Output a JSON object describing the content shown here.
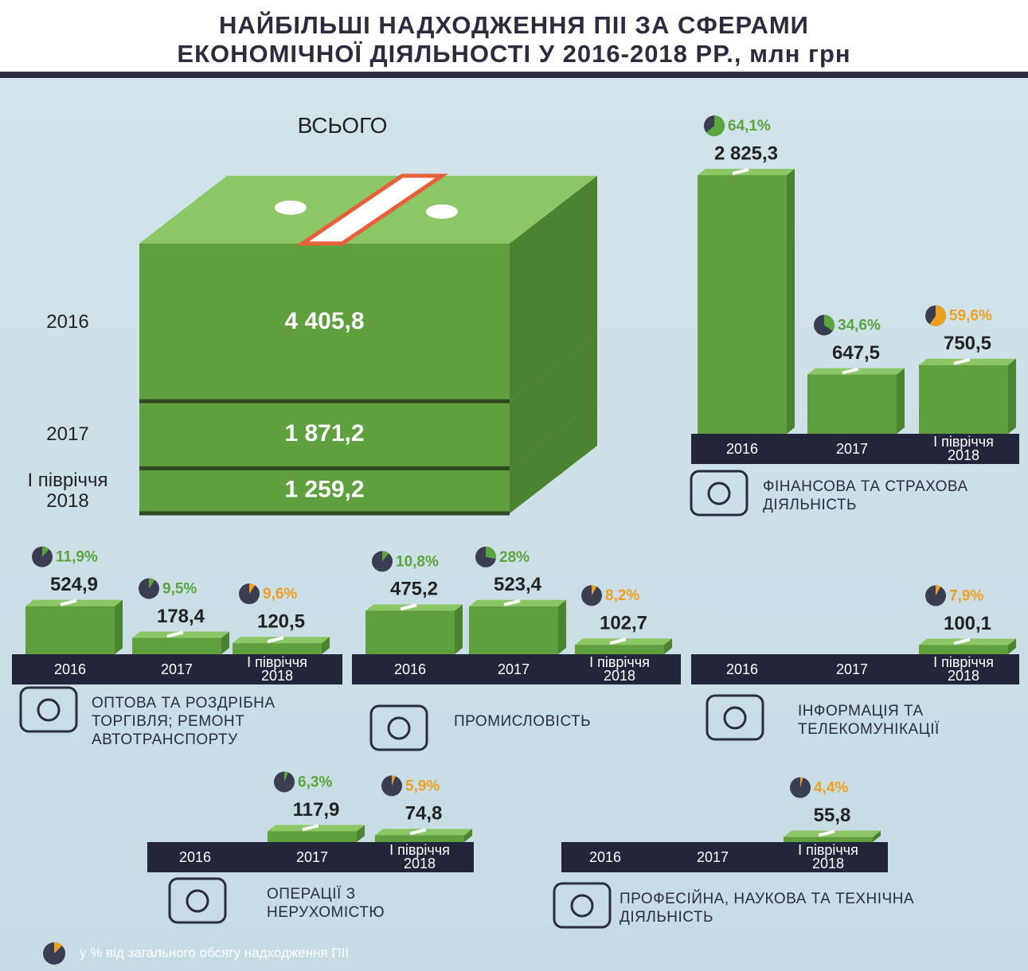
{
  "header": {
    "title_line1": "НАЙБІЛЬШІ НАДХОДЖЕННЯ ПІІ ЗА СФЕРАМИ",
    "title_line2": "ЕКОНОМІЧНОЇ ДІЯЛЬНОСТІ У 2016-2018 РР., млн грн"
  },
  "periods": [
    "2016",
    "2017",
    "І півріччя 2018"
  ],
  "colors": {
    "bar": "#5f9f3e",
    "bar_side": "#4a8430",
    "bar_top": "#8cc766",
    "strip": "#23253a",
    "periods": [
      "#5aa53c",
      "#5aa53c",
      "#f0a020"
    ]
  },
  "total": {
    "label": "ВСЬОГО",
    "values": [
      4405.8,
      1871.2,
      1259.2
    ],
    "value_labels": [
      "4 405,8",
      "1 871,2",
      "1 259,2"
    ]
  },
  "sectors": [
    {
      "name": "ФІНАНСОВА ТА СТРАХОВА ДІЯЛЬНІСТЬ",
      "values": [
        2825.3,
        647.5,
        750.5
      ],
      "value_labels": [
        "2 825,3",
        "647,5",
        "750,5"
      ],
      "shares": [
        64.1,
        34.6,
        59.6
      ],
      "share_labels": [
        "64,1%",
        "34,6%",
        "59,6%"
      ]
    },
    {
      "name": "ОПТОВА ТА РОЗДРІБНА ТОРГІВЛЯ; РЕМОНТ АВТОТРАНСПОРТУ",
      "values": [
        524.9,
        178.4,
        120.5
      ],
      "value_labels": [
        "524,9",
        "178,4",
        "120,5"
      ],
      "shares": [
        11.9,
        9.5,
        9.6
      ],
      "share_labels": [
        "11,9%",
        "9,5%",
        "9,6%"
      ]
    },
    {
      "name": "ПРОМИСЛОВІСТЬ",
      "values": [
        475.2,
        523.4,
        102.7
      ],
      "value_labels": [
        "475,2",
        "523,4",
        "102,7"
      ],
      "shares": [
        10.8,
        28,
        8.2
      ],
      "share_labels": [
        "10,8%",
        "28%",
        "8,2%"
      ]
    },
    {
      "name": "ІНФОРМАЦІЯ ТА ТЕЛЕКОМУНІКАЦІЇ",
      "values": [
        null,
        null,
        100.1
      ],
      "value_labels": [
        null,
        null,
        "100,1"
      ],
      "shares": [
        null,
        null,
        7.9
      ],
      "share_labels": [
        null,
        null,
        "7,9%"
      ]
    },
    {
      "name": "ОПЕРАЦІЇ З НЕРУХОМІСТЮ",
      "values": [
        null,
        117.9,
        74.8
      ],
      "value_labels": [
        null,
        "117,9",
        "74,8"
      ],
      "shares": [
        null,
        6.3,
        5.9
      ],
      "share_labels": [
        null,
        "6,3%",
        "5,9%"
      ]
    },
    {
      "name": "ПРОФЕСІЙНА, НАУКОВА ТА ТЕХНІЧНА ДІЯЛЬНІСТЬ",
      "values": [
        null,
        null,
        55.8
      ],
      "value_labels": [
        null,
        null,
        "55,8"
      ],
      "shares": [
        null,
        null,
        4.4
      ],
      "share_labels": [
        null,
        null,
        "4,4%"
      ]
    }
  ],
  "legend": "у % від загального обсягу надходження ПІІ"
}
